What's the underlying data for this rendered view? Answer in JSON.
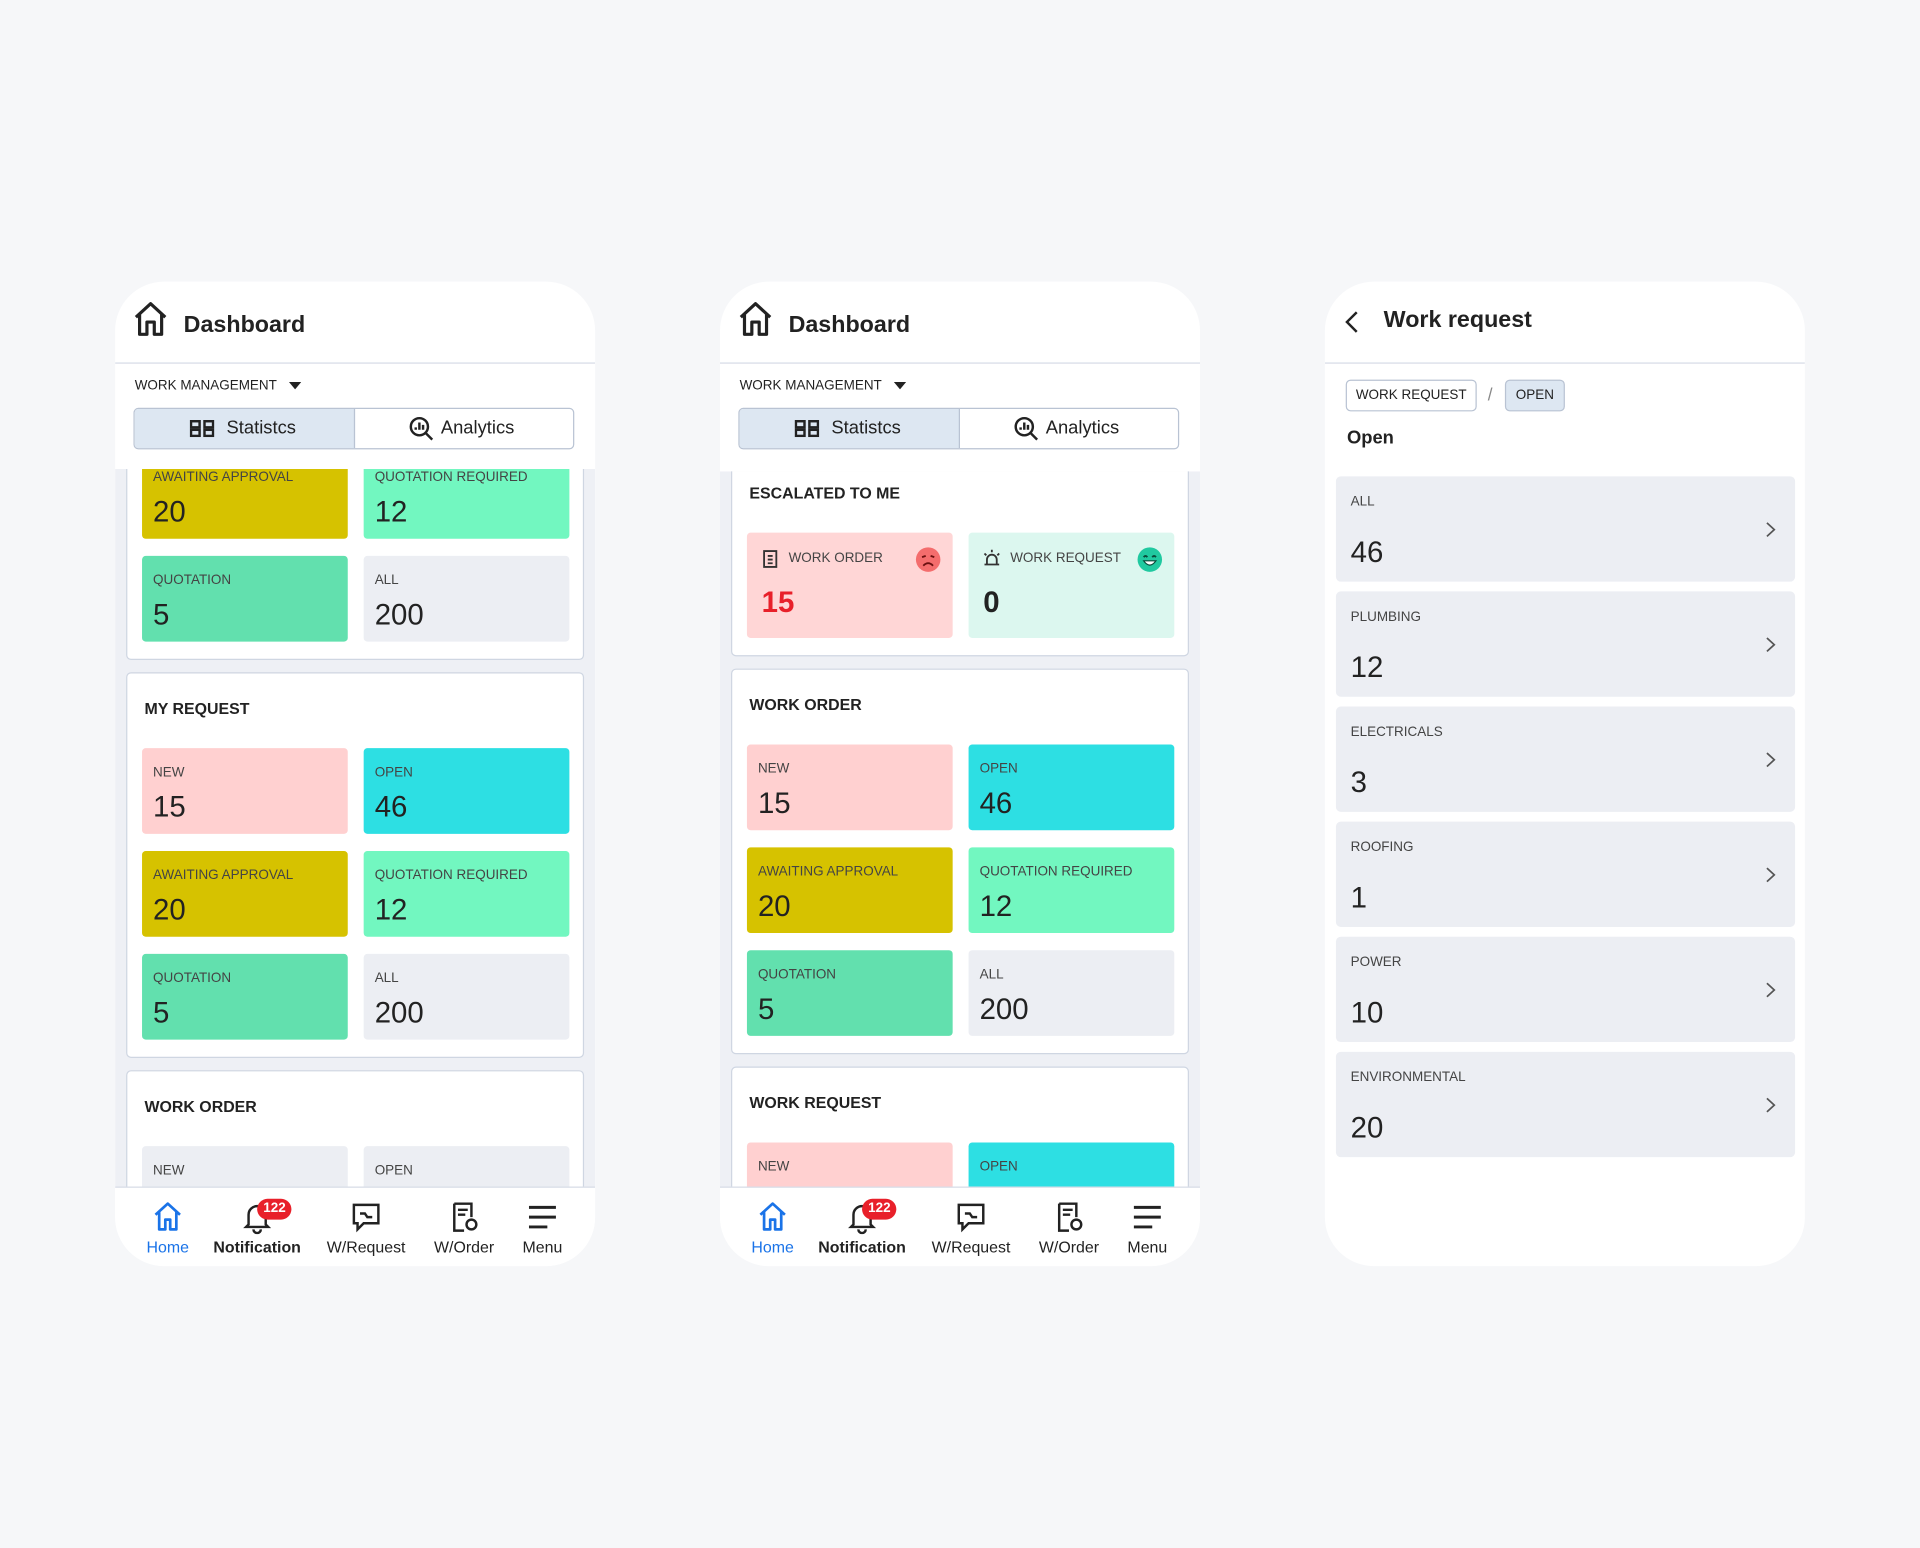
{
  "screens": [
    {
      "title": "Dashboard",
      "module": "WORK MANAGEMENT",
      "tabs": [
        "Statistcs",
        "Analytics"
      ],
      "sections": [
        {
          "cards": [
            {
              "label": "AWAITING APPROVAL",
              "value": 20,
              "color": "#d6c200"
            },
            {
              "label": "QUOTATION REQUIRED",
              "value": 12,
              "color": "#72f7c0"
            },
            {
              "label": "QUOTATION",
              "value": 5,
              "color": "#62e0ae"
            },
            {
              "label": "ALL",
              "value": 200,
              "color": "#eceef3"
            }
          ]
        },
        {
          "title": "MY REQUEST",
          "cards": [
            {
              "label": "NEW",
              "value": 15,
              "color": "#ffd0d0"
            },
            {
              "label": "OPEN",
              "value": 46,
              "color": "#2ddfe3"
            },
            {
              "label": "AWAITING APPROVAL",
              "value": 20,
              "color": "#d6c200"
            },
            {
              "label": "QUOTATION REQUIRED",
              "value": 12,
              "color": "#72f7c0"
            },
            {
              "label": "QUOTATION",
              "value": 5,
              "color": "#62e0ae"
            },
            {
              "label": "ALL",
              "value": 200,
              "color": "#eceef3"
            }
          ]
        },
        {
          "title": "WORK ORDER",
          "cards": [
            {
              "label": "NEW",
              "color": "#eceef3"
            },
            {
              "label": "OPEN",
              "color": "#eceef3"
            }
          ]
        }
      ]
    },
    {
      "title": "Dashboard",
      "module": "WORK MANAGEMENT",
      "tabs": [
        "Statistcs",
        "Analytics"
      ],
      "sections": [
        {
          "title": "ESCALATED TO ME",
          "cards": [
            {
              "label": "WORK ORDER",
              "value": 15,
              "color": "#ffd6d6"
            },
            {
              "label": "WORK REQUEST",
              "value": 0,
              "color": "#dcf7ef"
            }
          ]
        },
        {
          "title": "WORK ORDER",
          "cards": [
            {
              "label": "NEW",
              "value": 15,
              "color": "#ffd0d0"
            },
            {
              "label": "OPEN",
              "value": 46,
              "color": "#2ddfe3"
            },
            {
              "label": "AWAITING APPROVAL",
              "value": 20,
              "color": "#d6c200"
            },
            {
              "label": "QUOTATION REQUIRED",
              "value": 12,
              "color": "#72f7c0"
            },
            {
              "label": "QUOTATION",
              "value": 5,
              "color": "#62e0ae"
            },
            {
              "label": "ALL",
              "value": 200,
              "color": "#eceef3"
            }
          ]
        },
        {
          "title": "WORK REQUEST",
          "cards": [
            {
              "label": "NEW",
              "color": "#ffd0d0"
            },
            {
              "label": "OPEN",
              "color": "#2ddfe3"
            }
          ]
        }
      ]
    }
  ],
  "nav": {
    "items": [
      "Home",
      "Notification",
      "W/Request",
      "W/Order",
      "Menu"
    ],
    "badge": 122
  },
  "work_request": {
    "title": "Work request",
    "breadcrumbs": [
      "WORK REQUEST",
      "OPEN"
    ],
    "heading": "Open",
    "items": [
      {
        "label": "ALL",
        "value": 46
      },
      {
        "label": "PLUMBING",
        "value": 12
      },
      {
        "label": "ELECTRICALS",
        "value": 3
      },
      {
        "label": "ROOFING",
        "value": 1
      },
      {
        "label": "POWER",
        "value": 10
      },
      {
        "label": "ENVIRONMENTAL",
        "value": 20
      }
    ]
  }
}
